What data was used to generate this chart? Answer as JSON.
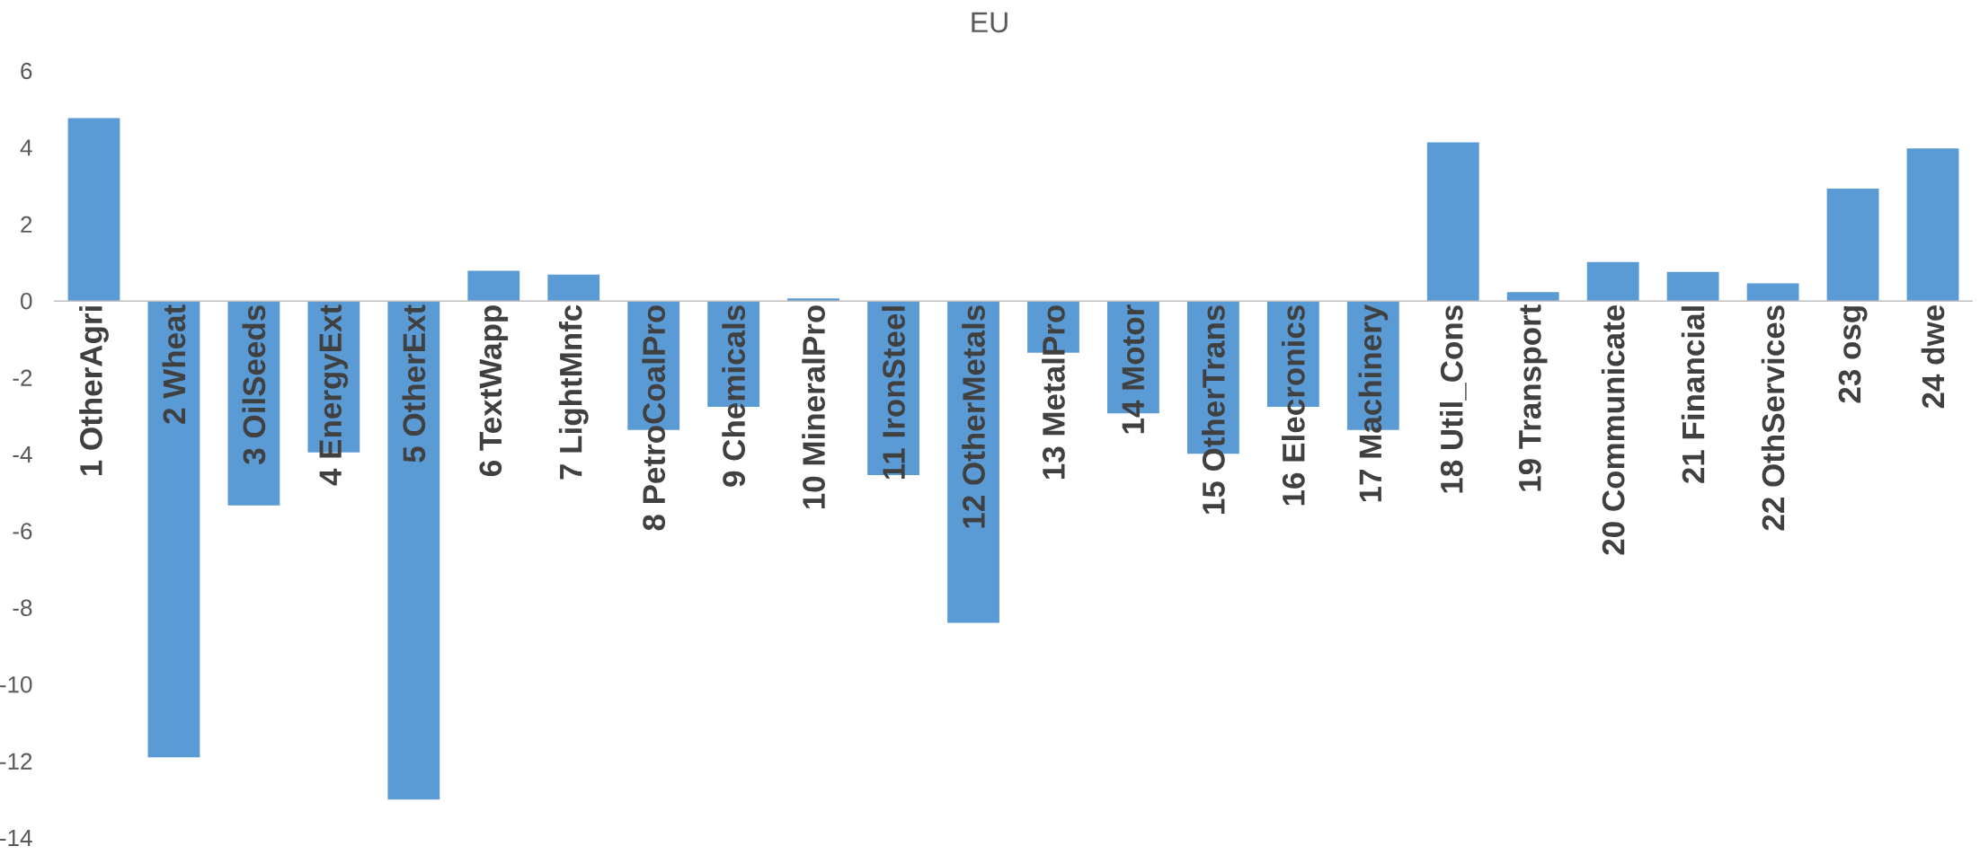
{
  "chart_data": {
    "type": "bar",
    "title": "EU",
    "categories": [
      "1 OtherAgri",
      "2 Wheat",
      "3 OilSeeds",
      "4 EnergyExt",
      "5 OtherExt",
      "6 TextWapp",
      "7 LightMnfc",
      "8 PetroCoalPro",
      "9 Chemicals",
      "10 MineralPro",
      "11 IronSteel",
      "12 OtherMetals",
      "13 MetalPro",
      "14 Motor",
      "15 OtherTrans",
      "16 Elecronics",
      "17 Machinery",
      "18 Util_Cons",
      "19 Transport",
      "20 Communicate",
      "21 Financial",
      "22 OthServices",
      "23 osg",
      "24 dwe"
    ],
    "values": [
      4.77,
      -11.9,
      -5.33,
      -3.95,
      -13.0,
      0.79,
      0.69,
      -3.36,
      -2.76,
      0.07,
      -4.54,
      -8.39,
      -1.35,
      -2.93,
      -3.98,
      -2.76,
      -3.36,
      4.14,
      0.23,
      1.02,
      0.76,
      0.46,
      2.93,
      3.98
    ],
    "color": "#5b9bd5",
    "ylim": [
      -14,
      6
    ],
    "yticks": [
      -14,
      -12,
      -10,
      -8,
      -6,
      -4,
      -2,
      0,
      2,
      4,
      6
    ]
  }
}
